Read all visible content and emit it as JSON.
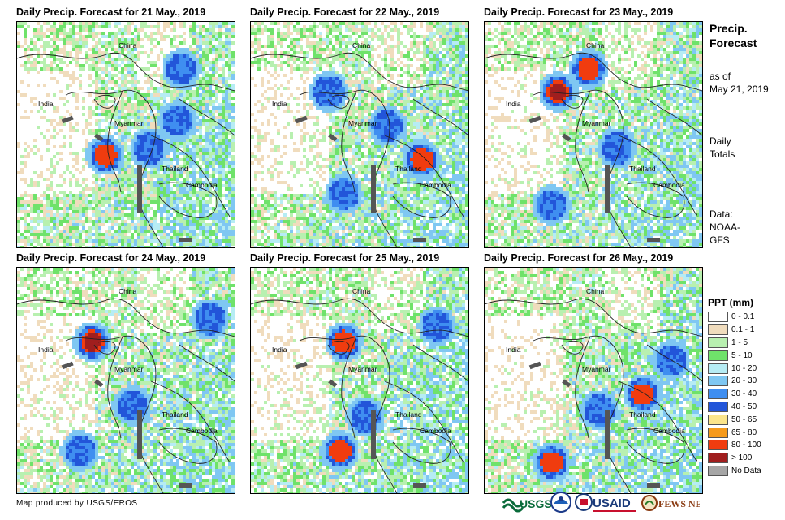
{
  "panels": [
    {
      "title": "Daily Precip. Forecast for 21 May., 2019",
      "hotspots": [
        [
          0.73,
          0.43,
          "g"
        ],
        [
          0.6,
          0.55,
          "g"
        ],
        [
          0.75,
          0.2,
          "b"
        ],
        [
          0.4,
          0.58,
          "r"
        ]
      ]
    },
    {
      "title": "Daily Precip. Forecast for 22 May., 2019",
      "hotspots": [
        [
          0.35,
          0.3,
          "b"
        ],
        [
          0.78,
          0.6,
          "r"
        ],
        [
          0.62,
          0.45,
          "b"
        ],
        [
          0.42,
          0.75,
          "b"
        ]
      ]
    },
    {
      "title": "Daily Precip. Forecast for 23 May., 2019",
      "hotspots": [
        [
          0.33,
          0.3,
          "rr"
        ],
        [
          0.47,
          0.2,
          "r"
        ],
        [
          0.3,
          0.8,
          "b"
        ],
        [
          0.6,
          0.55,
          "b"
        ]
      ]
    },
    {
      "title": "Daily Precip. Forecast for 24 May., 2019",
      "hotspots": [
        [
          0.34,
          0.32,
          "rr"
        ],
        [
          0.88,
          0.22,
          "b"
        ],
        [
          0.52,
          0.6,
          "b"
        ],
        [
          0.28,
          0.8,
          "g"
        ]
      ]
    },
    {
      "title": "Daily Precip. Forecast for 25 May., 2019",
      "hotspots": [
        [
          0.42,
          0.32,
          "r"
        ],
        [
          0.4,
          0.8,
          "r"
        ],
        [
          0.85,
          0.25,
          "b"
        ],
        [
          0.52,
          0.65,
          "b"
        ]
      ]
    },
    {
      "title": "Daily Precip. Forecast for 26 May., 2019",
      "hotspots": [
        [
          0.52,
          0.62,
          "b"
        ],
        [
          0.72,
          0.55,
          "r"
        ],
        [
          0.3,
          0.85,
          "r"
        ],
        [
          0.85,
          0.4,
          "b"
        ]
      ]
    }
  ],
  "map_labels": {
    "china": "China",
    "india": "India",
    "myanmar": "Myanmar",
    "thailand": "Thailand",
    "cambodia": "Cambodia"
  },
  "side": {
    "title": "Precip. Forecast",
    "as_of_label": "as of",
    "as_of_date": "May 21, 2019",
    "totals": "Daily Totals",
    "data_label": "Data:",
    "data_source": "NOAA-GFS"
  },
  "legend": {
    "title": "PPT (mm)",
    "items": [
      {
        "label": "0 - 0.1",
        "color": "#ffffff"
      },
      {
        "label": "0.1 - 1",
        "color": "#f0dcbd"
      },
      {
        "label": "1 - 5",
        "color": "#b8f0b0"
      },
      {
        "label": "5 - 10",
        "color": "#6fe26a"
      },
      {
        "label": "10 - 20",
        "color": "#b6ecf4"
      },
      {
        "label": "20 - 30",
        "color": "#7fc7f2"
      },
      {
        "label": "30 - 40",
        "color": "#3f8ef0"
      },
      {
        "label": "40 - 50",
        "color": "#2255d9"
      },
      {
        "label": "50 - 65",
        "color": "#fbe58b"
      },
      {
        "label": "65 - 80",
        "color": "#f59a1c"
      },
      {
        "label": "80 - 100",
        "color": "#f03c0f"
      },
      {
        "label": "> 100",
        "color": "#a01e1e"
      },
      {
        "label": "No Data",
        "color": "#a6a6a6"
      }
    ]
  },
  "credit": "Map produced by USGS/EROS",
  "logos": {
    "usgs": "USGS",
    "usaid": "USAID",
    "fewsnet": "FEWS NET"
  }
}
